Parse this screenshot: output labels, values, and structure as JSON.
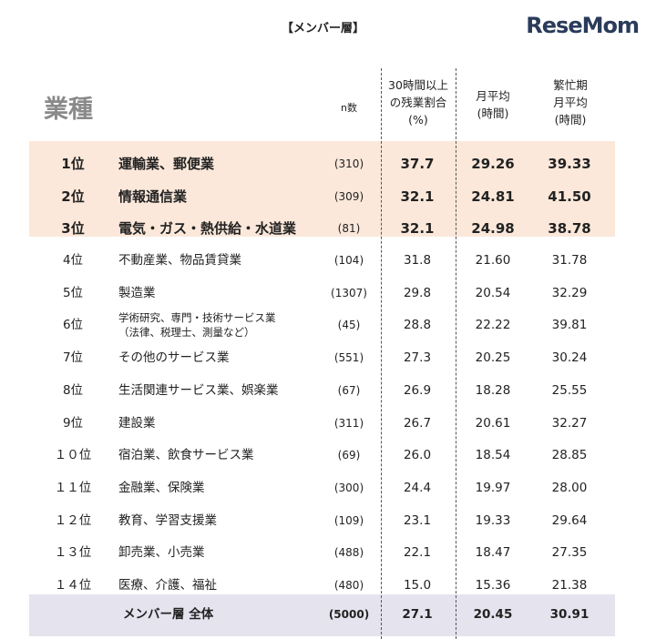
{
  "title": "【メンバー層】",
  "headers": {
    "industry": "業種",
    "n": "n数",
    "overtime_ratio": [
      "30時間以上",
      "の残業割合",
      "(%)"
    ],
    "monthly_avg": [
      "月平均",
      "(時間)"
    ],
    "busy_avg": [
      "繁忙期",
      "月平均",
      "(時間)"
    ]
  },
  "colors": {
    "top3_band": "#fbe8da",
    "total_band": "#e5e3ee"
  },
  "rows": [
    {
      "rank": "1位",
      "industry": "運輸業、郵便業",
      "n": "(310)",
      "ratio": "37.7",
      "avg": "29.26",
      "busy": "39.33"
    },
    {
      "rank": "2位",
      "industry": "情報通信業",
      "n": "(309)",
      "ratio": "32.1",
      "avg": "24.81",
      "busy": "41.50"
    },
    {
      "rank": "3位",
      "industry": "電気・ガス・熱供給・水道業",
      "n": "(81)",
      "ratio": "32.1",
      "avg": "24.98",
      "busy": "38.78"
    },
    {
      "rank": "4位",
      "industry": "不動産業、物品賃貸業",
      "n": "(104)",
      "ratio": "31.8",
      "avg": "21.60",
      "busy": "31.78"
    },
    {
      "rank": "5位",
      "industry": "製造業",
      "n": "(1307)",
      "ratio": "29.8",
      "avg": "20.54",
      "busy": "32.29"
    },
    {
      "rank": "6位",
      "industry": "学術研究、専門・技術サービス業",
      "industry_sub": "（法律、税理士、測量など）",
      "n": "(45)",
      "ratio": "28.8",
      "avg": "22.22",
      "busy": "39.81"
    },
    {
      "rank": "7位",
      "industry": "その他のサービス業",
      "n": "(551)",
      "ratio": "27.3",
      "avg": "20.25",
      "busy": "30.24"
    },
    {
      "rank": "8位",
      "industry": "生活関連サービス業、娯楽業",
      "n": "(67)",
      "ratio": "26.9",
      "avg": "18.28",
      "busy": "25.55"
    },
    {
      "rank": "9位",
      "industry": "建設業",
      "n": "(311)",
      "ratio": "26.7",
      "avg": "20.61",
      "busy": "32.27"
    },
    {
      "rank": "１０位",
      "industry": "宿泊業、飲食サービス業",
      "n": "(69)",
      "ratio": "26.0",
      "avg": "18.54",
      "busy": "28.85"
    },
    {
      "rank": "１１位",
      "industry": "金融業、保険業",
      "n": "(300)",
      "ratio": "24.4",
      "avg": "19.97",
      "busy": "28.00"
    },
    {
      "rank": "１２位",
      "industry": "教育、学習支援業",
      "n": "(109)",
      "ratio": "23.1",
      "avg": "19.33",
      "busy": "29.64"
    },
    {
      "rank": "１３位",
      "industry": "卸売業、小売業",
      "n": "(488)",
      "ratio": "22.1",
      "avg": "18.47",
      "busy": "27.35"
    },
    {
      "rank": "１４位",
      "industry": "医療、介護、福祉",
      "n": "(480)",
      "ratio": "15.0",
      "avg": "15.36",
      "busy": "21.38"
    }
  ],
  "total": {
    "label": "メンバー層 全体",
    "n": "(5000)",
    "ratio": "27.1",
    "avg": "20.45",
    "busy": "30.91"
  },
  "watermark": "ReseMom"
}
